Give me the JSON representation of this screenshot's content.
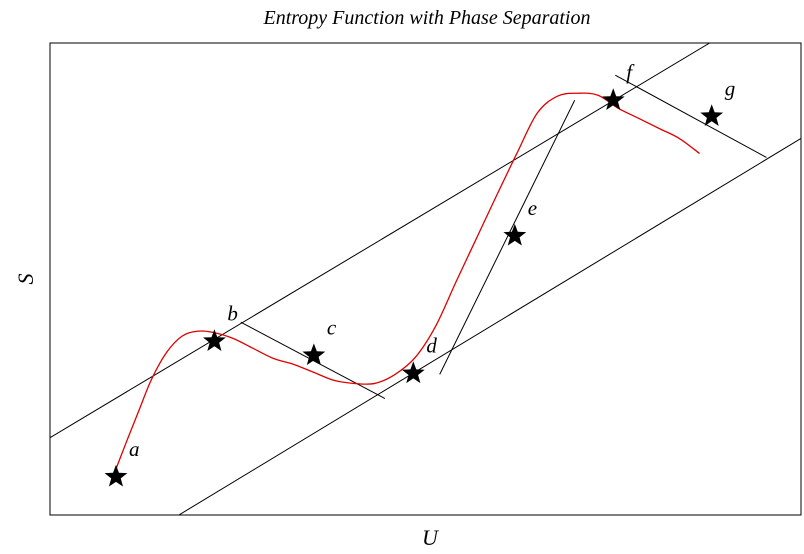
{
  "chart_data": {
    "type": "line",
    "title": "Entropy Function with Phase Separation",
    "xlabel": "U",
    "ylabel": "S",
    "xlim": [
      0,
      7.4
    ],
    "ylim": [
      0,
      4.7
    ],
    "grid": false,
    "ticks": false,
    "curve_color": "#e00000",
    "curve": [
      [
        0.62,
        0.38
      ],
      [
        0.75,
        0.72
      ],
      [
        0.88,
        1.05
      ],
      [
        1.0,
        1.35
      ],
      [
        1.15,
        1.62
      ],
      [
        1.3,
        1.78
      ],
      [
        1.45,
        1.83
      ],
      [
        1.6,
        1.82
      ],
      [
        1.8,
        1.76
      ],
      [
        2.0,
        1.66
      ],
      [
        2.2,
        1.56
      ],
      [
        2.4,
        1.5
      ],
      [
        2.6,
        1.42
      ],
      [
        2.8,
        1.34
      ],
      [
        3.0,
        1.31
      ],
      [
        3.2,
        1.31
      ],
      [
        3.4,
        1.4
      ],
      [
        3.6,
        1.57
      ],
      [
        3.8,
        1.88
      ],
      [
        4.0,
        2.32
      ],
      [
        4.2,
        2.75
      ],
      [
        4.4,
        3.18
      ],
      [
        4.6,
        3.6
      ],
      [
        4.8,
        4.0
      ],
      [
        5.0,
        4.17
      ],
      [
        5.2,
        4.2
      ],
      [
        5.4,
        4.18
      ],
      [
        5.6,
        4.05
      ],
      [
        5.8,
        3.95
      ],
      [
        6.0,
        3.85
      ],
      [
        6.2,
        3.75
      ],
      [
        6.4,
        3.6
      ]
    ],
    "points": [
      {
        "label": "a",
        "x": 0.65,
        "y": 0.38
      },
      {
        "label": "b",
        "x": 1.62,
        "y": 1.73
      },
      {
        "label": "c",
        "x": 2.6,
        "y": 1.59
      },
      {
        "label": "d",
        "x": 3.58,
        "y": 1.41
      },
      {
        "label": "e",
        "x": 4.58,
        "y": 2.78
      },
      {
        "label": "f",
        "x": 5.55,
        "y": 4.13
      },
      {
        "label": "g",
        "x": 6.52,
        "y": 3.97
      }
    ],
    "long_lines": [
      {
        "x1": 0,
        "y1": 0.77,
        "x2": 6.5,
        "y2": 4.7
      },
      {
        "x1": 1.27,
        "y1": 0,
        "x2": 7.4,
        "y2": 3.75
      }
    ],
    "tangent_segments": [
      {
        "x1": 1.88,
        "y1": 1.92,
        "x2": 3.3,
        "y2": 1.16
      },
      {
        "x1": 3.84,
        "y1": 1.4,
        "x2": 5.17,
        "y2": 4.13
      },
      {
        "x1": 5.57,
        "y1": 4.38,
        "x2": 7.06,
        "y2": 3.56
      }
    ]
  }
}
